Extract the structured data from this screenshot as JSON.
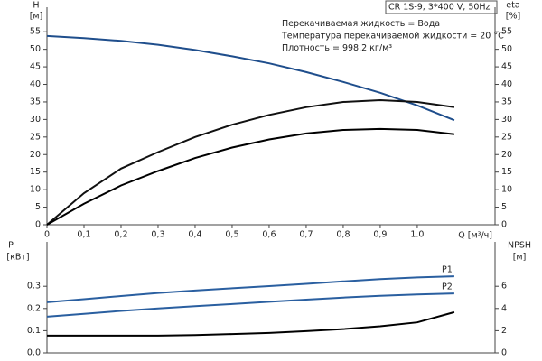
{
  "chart_data": [
    {
      "type": "line",
      "annotations": [
        "CR 1S-9, 3*400 V, 50Hz",
        "Перекачиваемая жидкость = Вода",
        "Температура перекачиваемой жидкости = 20 °C",
        "Плотность = 998.2 кг/м³"
      ],
      "ylabel": "H",
      "yunit": "[м]",
      "y2label": "eta",
      "y2unit": "[%]",
      "xlabel": "Q [м³/ч]",
      "x": [
        0,
        0.1,
        0.2,
        0.3,
        0.4,
        0.5,
        0.6,
        0.7,
        0.8,
        0.9,
        1.0,
        1.1
      ],
      "xlim": [
        0,
        1.21
      ],
      "xticks": [
        0,
        {
          "value": 0.1,
          "label": "0,1"
        },
        {
          "value": 0.2,
          "label": "0,2"
        },
        {
          "value": 0.3,
          "label": "0,3"
        },
        {
          "value": 0.4,
          "label": "0,4"
        },
        {
          "value": 0.5,
          "label": "0,5"
        },
        {
          "value": 0.6,
          "label": "0,6"
        },
        {
          "value": 0.7,
          "label": "0,7"
        },
        {
          "value": 0.8,
          "label": "0,8"
        },
        {
          "value": 0.9,
          "label": "0,9"
        },
        {
          "value": 1,
          "label": "1.0"
        }
      ],
      "ylim": [
        0,
        62
      ],
      "yticks": [
        0,
        5,
        10,
        15,
        20,
        25,
        30,
        35,
        40,
        45,
        50,
        55
      ],
      "y2lim": [
        0,
        62
      ],
      "y2ticks": [
        0,
        5,
        10,
        15,
        20,
        25,
        30,
        35,
        40,
        45,
        50,
        55
      ],
      "grid": false,
      "series": [
        {
          "color": "#1f4e8c",
          "values": [
            53.8,
            53.2,
            52.4,
            51.3,
            49.8,
            48,
            46,
            43.5,
            40.7,
            37.6,
            34,
            29.8
          ]
        },
        {
          "color": "#111111",
          "axis": "y2",
          "values": [
            0,
            9,
            16,
            20.7,
            25,
            28.5,
            31.3,
            33.5,
            35,
            35.5,
            35,
            33.5
          ]
        },
        {
          "color": "#000000",
          "axis": "y2",
          "values": [
            0,
            6,
            11.2,
            15.3,
            19,
            22,
            24.3,
            26,
            27,
            27.3,
            27,
            25.8
          ]
        }
      ]
    },
    {
      "type": "line",
      "ylabel": "P",
      "yunit": "[кВт]",
      "y2label": "NPSH",
      "y2unit": "[м]",
      "x": [
        0,
        0.1,
        0.2,
        0.3,
        0.4,
        0.5,
        0.6,
        0.7,
        0.8,
        0.9,
        1.0,
        1.1
      ],
      "xlim": [
        0,
        1.21
      ],
      "ylim": [
        0,
        0.5
      ],
      "yticks": [
        {
          "value": 0,
          "label": "0.0"
        },
        0.1,
        0.2,
        0.3
      ],
      "y2lim": [
        0,
        10
      ],
      "y2ticks": [
        0,
        2,
        4,
        6
      ],
      "grid": false,
      "series": [
        {
          "name": "P1",
          "color": "#2a5fa0",
          "values": [
            0.228,
            0.242,
            0.256,
            0.27,
            0.281,
            0.291,
            0.301,
            0.311,
            0.322,
            0.332,
            0.34,
            0.345
          ]
        },
        {
          "name": "P2",
          "color": "#2a5fa0",
          "values": [
            0.163,
            0.176,
            0.189,
            0.2,
            0.21,
            0.22,
            0.23,
            0.24,
            0.249,
            0.257,
            0.263,
            0.268
          ]
        },
        {
          "color": "#000000",
          "axis": "y2",
          "values": [
            1.55,
            1.55,
            1.55,
            1.55,
            1.6,
            1.7,
            1.8,
            1.96,
            2.15,
            2.4,
            2.75,
            3.67
          ]
        }
      ]
    }
  ]
}
